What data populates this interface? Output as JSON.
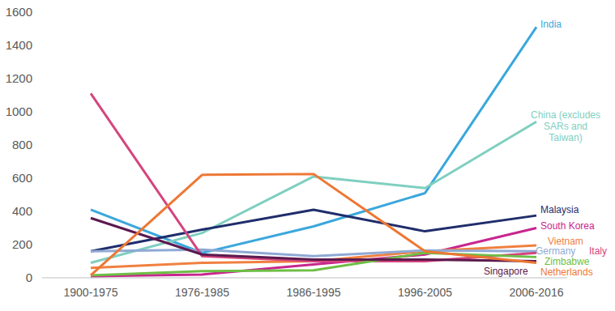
{
  "chart_data": {
    "type": "line",
    "categories": [
      "1900-1975",
      "1976-1985",
      "1986-1995",
      "1996-2005",
      "2006-2016"
    ],
    "ylim": [
      0,
      1600
    ],
    "yticks": [
      0,
      200,
      400,
      600,
      800,
      1000,
      1200,
      1400,
      1600
    ],
    "grid": false,
    "series": [
      {
        "name": "India",
        "color": "#3ba7dc",
        "values": [
          410,
          150,
          310,
          510,
          1510
        ]
      },
      {
        "name": "China (excludes SARs and Taiwan)",
        "color": "#7fcfc0",
        "values": [
          90,
          270,
          610,
          540,
          940
        ]
      },
      {
        "name": "Malaysia",
        "color": "#1f2d6b",
        "values": [
          160,
          290,
          410,
          280,
          375
        ]
      },
      {
        "name": "South Korea",
        "color": "#c8268e",
        "values": [
          10,
          20,
          80,
          140,
          300
        ]
      },
      {
        "name": "Vietnam",
        "color": "#f08040",
        "values": [
          60,
          90,
          100,
          160,
          195
        ]
      },
      {
        "name": "Germany",
        "color": "#8fa9d4",
        "values": [
          160,
          170,
          130,
          165,
          160
        ]
      },
      {
        "name": "Italy",
        "color": "#d4457e",
        "values": [
          1110,
          130,
          100,
          100,
          150
        ]
      },
      {
        "name": "Zimbabwe",
        "color": "#6dbe45",
        "values": [
          15,
          40,
          45,
          150,
          125
        ]
      },
      {
        "name": "Singapore",
        "color": "#5b1a4e",
        "values": [
          360,
          140,
          110,
          110,
          100
        ]
      },
      {
        "name": "Netherlands",
        "color": "#ee7733",
        "values": [
          15,
          620,
          625,
          160,
          90
        ]
      }
    ]
  }
}
